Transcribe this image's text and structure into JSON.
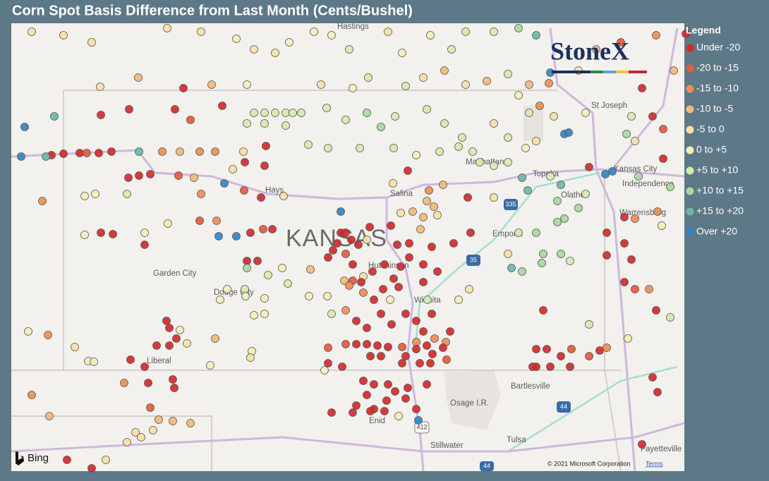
{
  "title": "Corn Spot Basis Difference from Last Month (Cents/Bushel)",
  "legend": {
    "title": "Legend",
    "items": [
      {
        "label": "Under -20",
        "color": "#d42a2a"
      },
      {
        "label": "-20 to -15",
        "color": "#e55a3c"
      },
      {
        "label": "-15 to -10",
        "color": "#ee8e55"
      },
      {
        "label": "-10 to -5",
        "color": "#f4b977"
      },
      {
        "label": "-5 to 0",
        "color": "#fae0a6"
      },
      {
        "label": "0 to +5",
        "color": "#f3f0b6"
      },
      {
        "label": "+5 to +10",
        "color": "#d6ebac"
      },
      {
        "label": "+10 to +15",
        "color": "#a9d7a0"
      },
      {
        "label": "+15 to +20",
        "color": "#6db7aa"
      },
      {
        "label": "Over +20",
        "color": "#3385c6"
      }
    ]
  },
  "places": [
    "Hastings",
    "St Joseph",
    "Manhattan",
    "Topeka",
    "Kansas City",
    "Independence",
    "Olathe",
    "Hays",
    "Salina",
    "KANSAS",
    "Emporia",
    "Warrensburg",
    "Garden City",
    "Hutchinson",
    "Dodge City",
    "Wichita",
    "Liberal",
    "Bartlesville",
    "Osage I.R.",
    "Tulsa",
    "Enid",
    "Stillwater",
    "Fayetteville"
  ],
  "shields": [
    "335",
    "35",
    "44",
    "412",
    "44"
  ],
  "logo": "StoneX",
  "attribution": {
    "bing": "Bing",
    "copyright": "© 2021 Microsoft Corporation",
    "terms": "Terms"
  }
}
